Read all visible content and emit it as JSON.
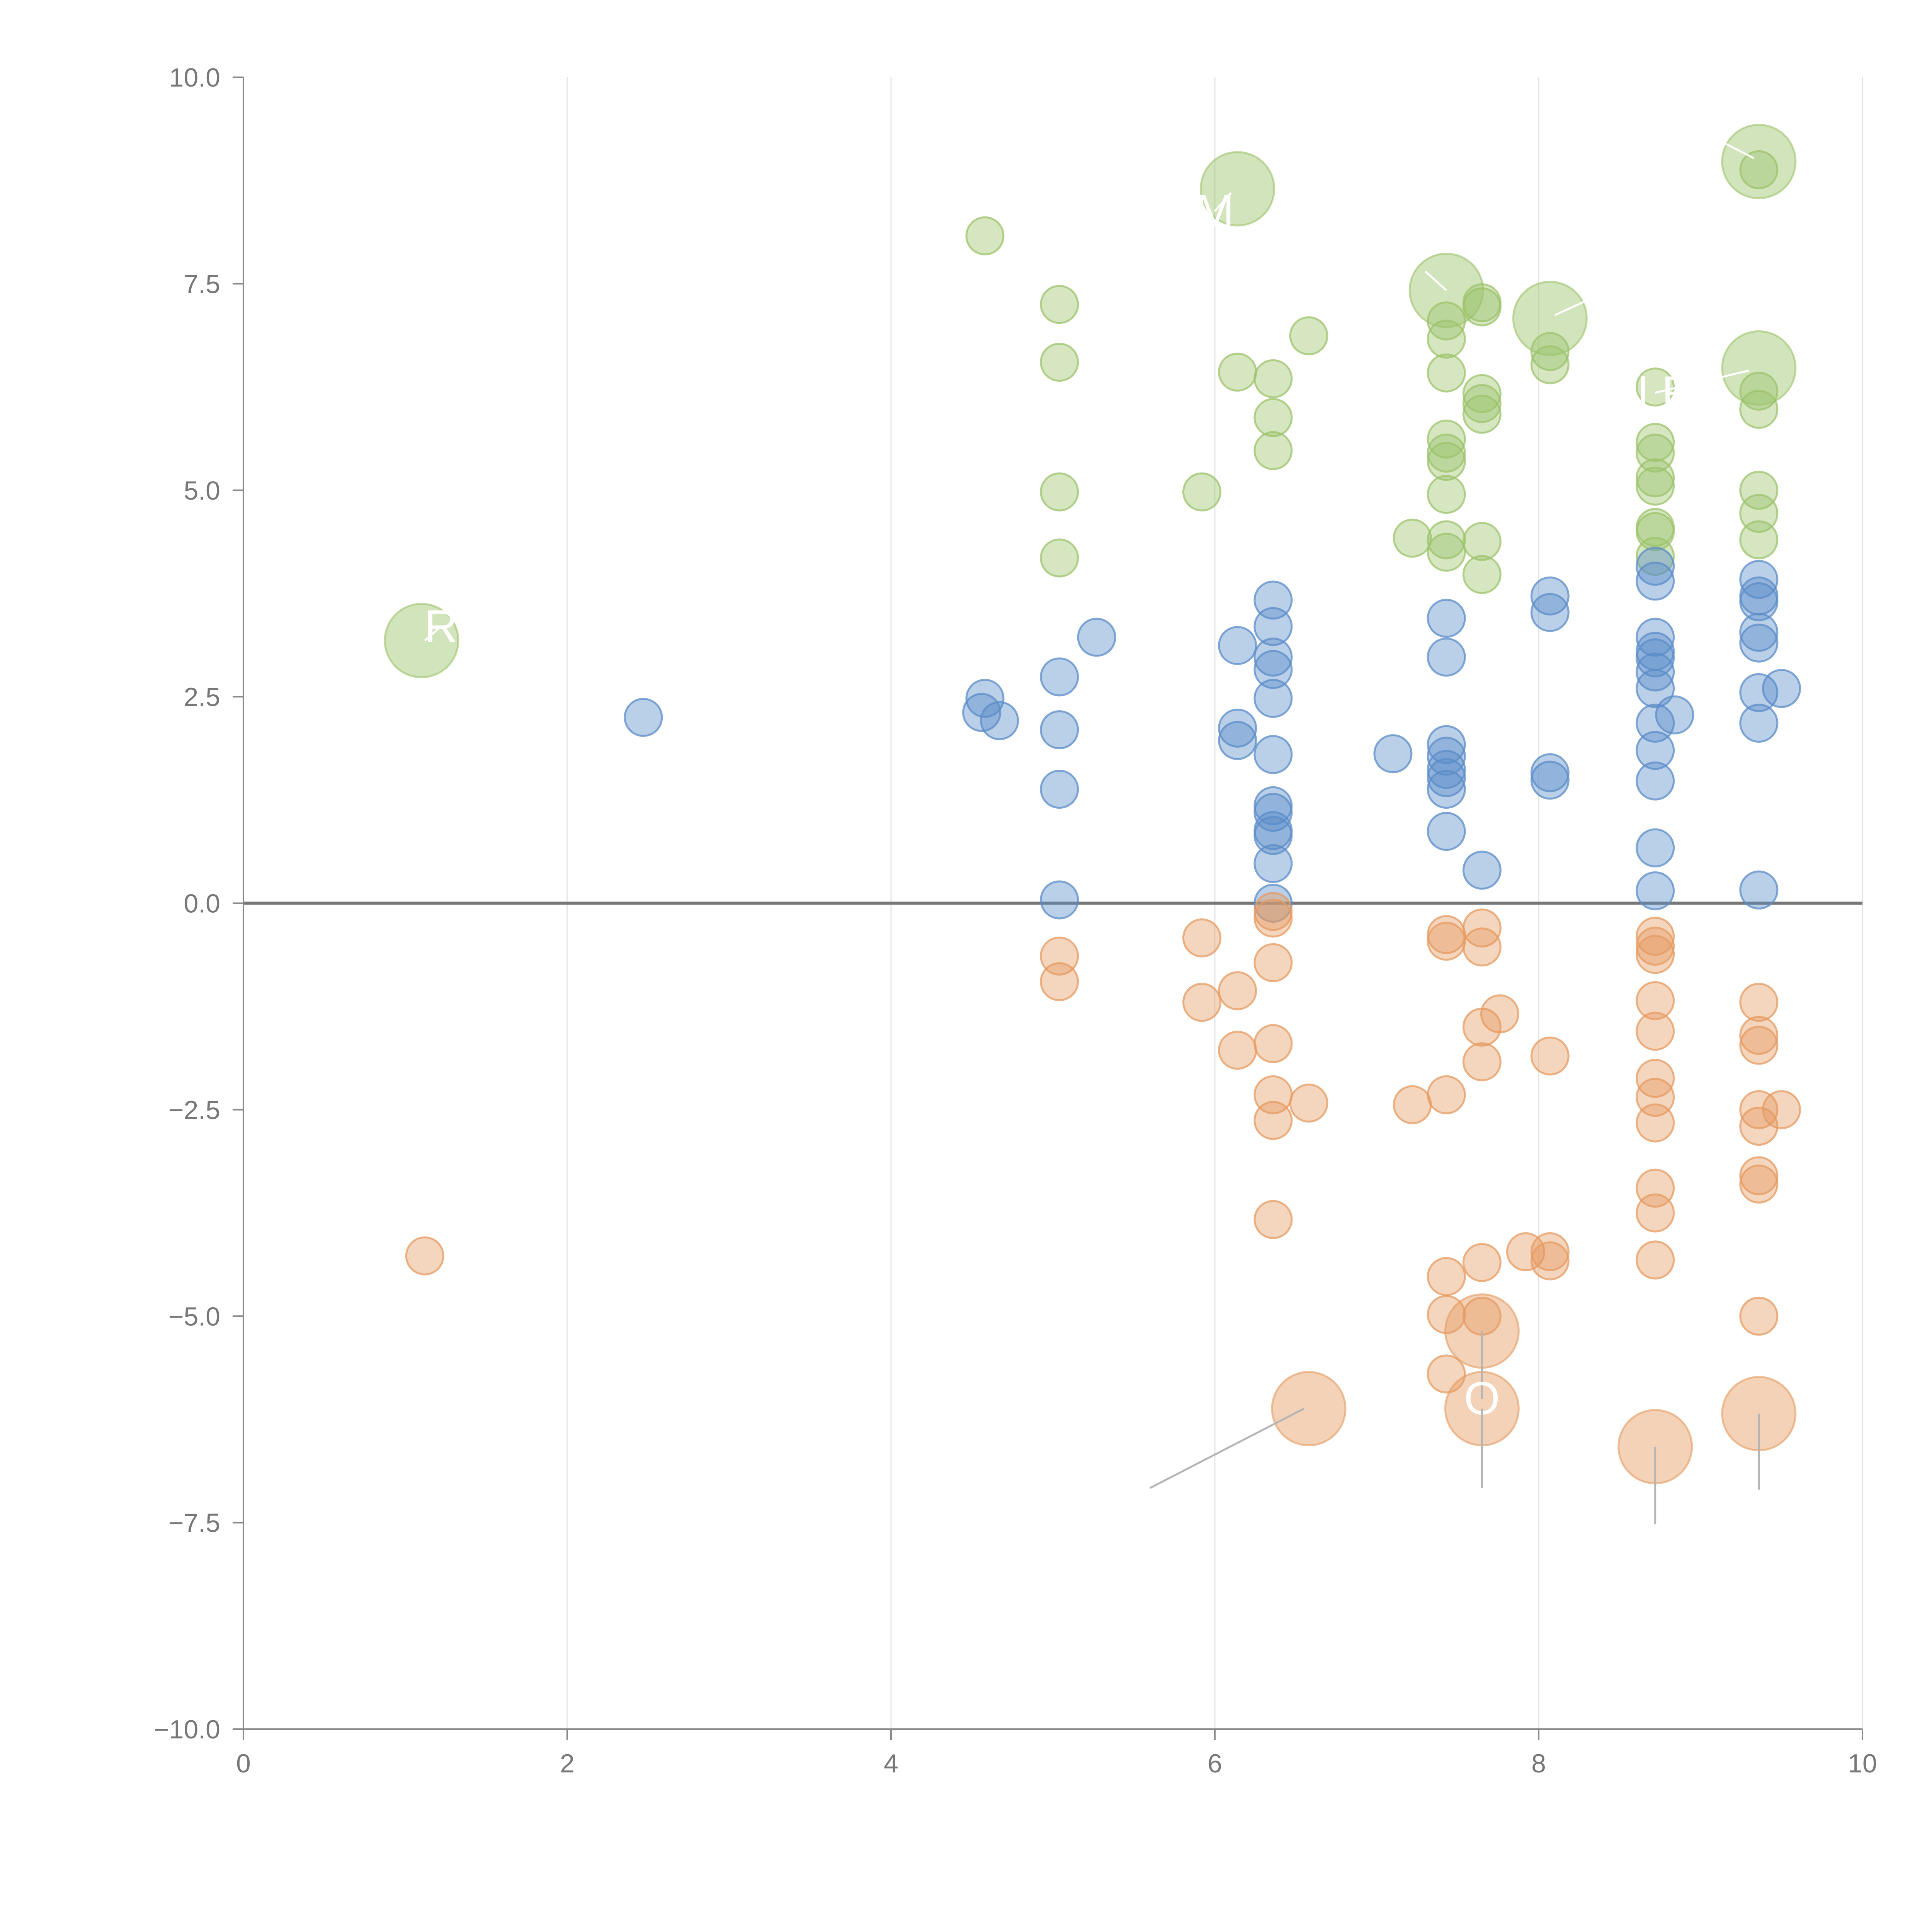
{
  "chart_data": {
    "type": "scatter",
    "title": "",
    "xlabel": "",
    "ylabel": "",
    "xlim": [
      0,
      10
    ],
    "ylim": [
      -10,
      10
    ],
    "x_ticks": [
      "0",
      "2",
      "4",
      "6",
      "8",
      "10"
    ],
    "y_ticks": [
      "10.0",
      "7.5",
      "5.0",
      "2.5",
      "0.0",
      "−2.5",
      "−5.0",
      "−7.5",
      "−10.0"
    ],
    "grid": "vertical",
    "zero_line": true,
    "series": [
      {
        "name": "green",
        "color": "#9cc36b",
        "points": [
          [
            4.58,
            8.08
          ],
          [
            5.04,
            7.25
          ],
          [
            5.04,
            6.55
          ],
          [
            5.04,
            4.98
          ],
          [
            5.04,
            4.18
          ],
          [
            5.92,
            4.98
          ],
          [
            6.14,
            6.43
          ],
          [
            6.36,
            6.35
          ],
          [
            6.36,
            5.88
          ],
          [
            6.36,
            5.48
          ],
          [
            6.58,
            6.87
          ],
          [
            7.22,
            4.42
          ],
          [
            7.43,
            7.05
          ],
          [
            7.43,
            6.83
          ],
          [
            7.43,
            6.42
          ],
          [
            7.43,
            5.62
          ],
          [
            7.43,
            5.45
          ],
          [
            7.43,
            5.35
          ],
          [
            7.43,
            4.95
          ],
          [
            7.43,
            4.4
          ],
          [
            7.43,
            4.25
          ],
          [
            7.65,
            7.27
          ],
          [
            7.65,
            7.22
          ],
          [
            7.65,
            6.17
          ],
          [
            7.65,
            6.05
          ],
          [
            7.65,
            5.92
          ],
          [
            7.65,
            4.38
          ],
          [
            7.65,
            3.98
          ],
          [
            8.07,
            6.68
          ],
          [
            8.07,
            6.52
          ],
          [
            8.72,
            6.25
          ],
          [
            8.72,
            5.58
          ],
          [
            8.72,
            5.45
          ],
          [
            8.72,
            5.15
          ],
          [
            8.72,
            5.05
          ],
          [
            8.72,
            4.55
          ],
          [
            8.72,
            4.5
          ],
          [
            8.72,
            4.2
          ],
          [
            9.36,
            8.88
          ],
          [
            9.36,
            6.2
          ],
          [
            9.36,
            5.98
          ],
          [
            9.36,
            5.0
          ],
          [
            9.36,
            4.72
          ],
          [
            9.36,
            4.4
          ]
        ]
      },
      {
        "name": "blue",
        "color": "#5b8cc8",
        "points": [
          [
            2.47,
            2.25
          ],
          [
            4.58,
            2.48
          ],
          [
            4.56,
            2.31
          ],
          [
            4.67,
            2.21
          ],
          [
            5.04,
            2.74
          ],
          [
            5.04,
            2.1
          ],
          [
            5.04,
            1.38
          ],
          [
            5.04,
            0.04
          ],
          [
            5.27,
            3.22
          ],
          [
            6.14,
            3.12
          ],
          [
            6.14,
            2.12
          ],
          [
            6.14,
            1.97
          ],
          [
            6.36,
            3.67
          ],
          [
            6.36,
            3.35
          ],
          [
            6.36,
            2.98
          ],
          [
            6.36,
            2.83
          ],
          [
            6.36,
            2.48
          ],
          [
            6.36,
            1.8
          ],
          [
            6.36,
            1.18
          ],
          [
            6.36,
            1.1
          ],
          [
            6.36,
            0.88
          ],
          [
            6.36,
            0.82
          ],
          [
            6.36,
            0.48
          ],
          [
            6.36,
            0.0
          ],
          [
            7.1,
            1.81
          ],
          [
            7.43,
            3.45
          ],
          [
            7.43,
            2.98
          ],
          [
            7.43,
            1.92
          ],
          [
            7.43,
            1.78
          ],
          [
            7.43,
            1.62
          ],
          [
            7.43,
            1.52
          ],
          [
            7.43,
            1.38
          ],
          [
            7.43,
            0.87
          ],
          [
            7.65,
            0.4
          ],
          [
            8.07,
            3.72
          ],
          [
            8.07,
            3.52
          ],
          [
            8.07,
            1.58
          ],
          [
            8.07,
            1.49
          ],
          [
            8.72,
            4.08
          ],
          [
            8.72,
            3.9
          ],
          [
            8.72,
            3.22
          ],
          [
            8.72,
            3.05
          ],
          [
            8.72,
            2.97
          ],
          [
            8.72,
            2.8
          ],
          [
            8.72,
            2.6
          ],
          [
            8.72,
            2.18
          ],
          [
            8.72,
            1.85
          ],
          [
            8.72,
            1.48
          ],
          [
            8.72,
            0.67
          ],
          [
            8.72,
            0.15
          ],
          [
            8.84,
            2.28
          ],
          [
            9.36,
            3.92
          ],
          [
            9.36,
            3.72
          ],
          [
            9.36,
            3.65
          ],
          [
            9.36,
            3.28
          ],
          [
            9.36,
            3.15
          ],
          [
            9.36,
            2.55
          ],
          [
            9.36,
            2.18
          ],
          [
            9.36,
            0.16
          ],
          [
            9.5,
            2.6
          ]
        ]
      },
      {
        "name": "orange",
        "color": "#e59b61",
        "points": [
          [
            1.12,
            -4.27
          ],
          [
            5.04,
            -0.64
          ],
          [
            5.04,
            -0.95
          ],
          [
            5.92,
            -0.42
          ],
          [
            5.92,
            -1.2
          ],
          [
            6.14,
            -1.06
          ],
          [
            6.14,
            -1.78
          ],
          [
            6.36,
            -0.1
          ],
          [
            6.36,
            -0.18
          ],
          [
            6.36,
            -0.72
          ],
          [
            6.36,
            -1.7
          ],
          [
            6.36,
            -2.32
          ],
          [
            6.36,
            -2.63
          ],
          [
            6.36,
            -3.83
          ],
          [
            6.58,
            -2.42
          ],
          [
            7.22,
            -2.44
          ],
          [
            7.43,
            -0.38
          ],
          [
            7.43,
            -0.46
          ],
          [
            7.43,
            -2.32
          ],
          [
            7.43,
            -4.52
          ],
          [
            7.43,
            -4.98
          ],
          [
            7.43,
            -5.7
          ],
          [
            7.65,
            -0.3
          ],
          [
            7.65,
            -0.53
          ],
          [
            7.65,
            -1.5
          ],
          [
            7.65,
            -1.92
          ],
          [
            7.65,
            -4.35
          ],
          [
            7.65,
            -5.0
          ],
          [
            7.76,
            -1.34
          ],
          [
            7.92,
            -4.22
          ],
          [
            8.07,
            -4.22
          ],
          [
            8.07,
            -4.33
          ],
          [
            8.07,
            -1.85
          ],
          [
            8.72,
            -0.4
          ],
          [
            8.72,
            -0.52
          ],
          [
            8.72,
            -0.62
          ],
          [
            8.72,
            -1.18
          ],
          [
            8.72,
            -1.55
          ],
          [
            8.72,
            -2.12
          ],
          [
            8.72,
            -2.35
          ],
          [
            8.72,
            -2.66
          ],
          [
            8.72,
            -3.45
          ],
          [
            8.72,
            -3.75
          ],
          [
            8.72,
            -4.32
          ],
          [
            9.36,
            -1.2
          ],
          [
            9.36,
            -1.6
          ],
          [
            9.36,
            -1.72
          ],
          [
            9.36,
            -2.5
          ],
          [
            9.36,
            -2.7
          ],
          [
            9.36,
            -3.3
          ],
          [
            9.36,
            -3.4
          ],
          [
            9.36,
            -5.0
          ],
          [
            9.5,
            -2.5
          ]
        ]
      }
    ],
    "highlights": [
      {
        "x": 1.1,
        "y": 3.18,
        "series": "green",
        "label": "R",
        "label_x": 1.22,
        "label_y": 3.35,
        "line_end_x": 1.12,
        "line_end_y": 3.18
      },
      {
        "x": 6.14,
        "y": 8.65,
        "series": "green",
        "label": "M",
        "label_x": 6.0,
        "label_y": 8.38,
        "line_end_x": 6.1,
        "line_end_y": 8.6
      },
      {
        "x": 7.43,
        "y": 7.42,
        "series": "green",
        "label": "",
        "label_x": 7.3,
        "label_y": 7.65,
        "line_end_x": 7.43,
        "line_end_y": 7.42
      },
      {
        "x": 8.07,
        "y": 7.08,
        "series": "green",
        "label": "",
        "label_x": 8.3,
        "label_y": 7.3,
        "line_end_x": 8.1,
        "line_end_y": 7.12
      },
      {
        "x": 9.36,
        "y": 6.48,
        "series": "green",
        "label": "N  R",
        "label_x": 8.72,
        "label_y": 6.18,
        "line_end_x": 9.3,
        "line_end_y": 6.45
      },
      {
        "x": 9.36,
        "y": 8.98,
        "series": "green",
        "label": "",
        "label_x": 8.38,
        "label_y": 9.97,
        "line_end_x": 9.33,
        "line_end_y": 9.02
      },
      {
        "x": 6.58,
        "y": -6.12,
        "series": "orange",
        "label": "",
        "label_x": 5.6,
        "label_y": -7.08,
        "line_end_x": 6.55,
        "line_end_y": -6.12
      },
      {
        "x": 7.65,
        "y": -5.18,
        "series": "orange",
        "label": "O",
        "label_x": 7.65,
        "label_y": -6.0,
        "line_end_x": 7.65,
        "line_end_y": -5.18
      },
      {
        "x": 7.65,
        "y": -6.12,
        "series": "orange",
        "label": "",
        "label_x": 7.65,
        "label_y": -7.08,
        "line_end_x": 7.65,
        "line_end_y": -6.12
      },
      {
        "x": 8.72,
        "y": -6.58,
        "series": "orange",
        "label": "",
        "label_x": 8.72,
        "label_y": -7.52,
        "line_end_x": 8.72,
        "line_end_y": -6.58
      },
      {
        "x": 9.36,
        "y": -6.18,
        "series": "orange",
        "label": "",
        "label_x": 9.36,
        "label_y": -7.1,
        "line_end_x": 9.36,
        "line_end_y": -6.18
      }
    ]
  }
}
